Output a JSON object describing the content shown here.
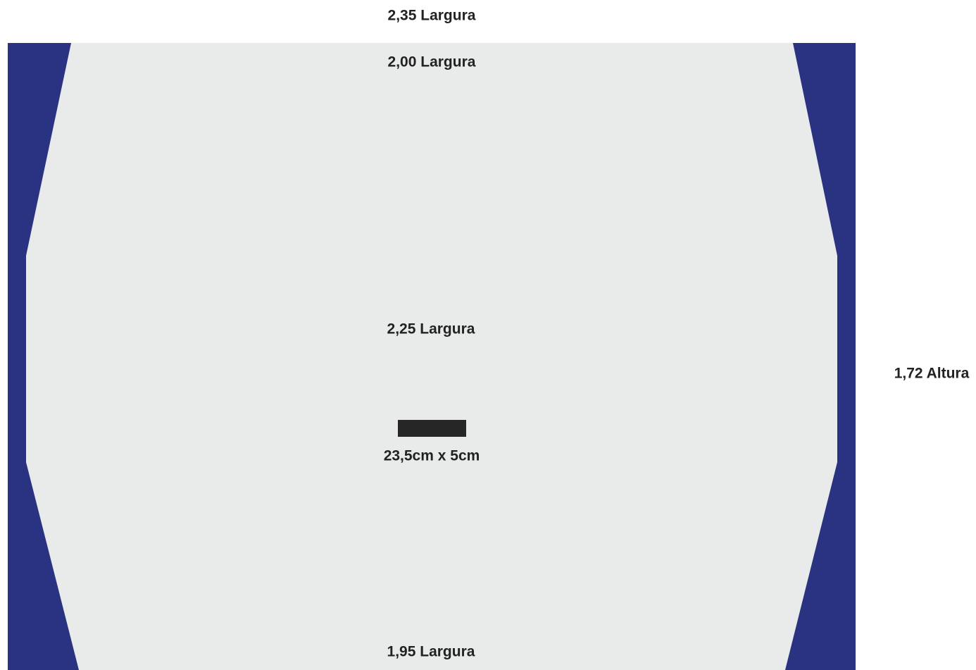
{
  "labels": {
    "top_width": "2,35 Largura",
    "upper_width": "2,00 Largura",
    "middle_width": "2,25 Largura",
    "bottom_width": "1,95 Largura",
    "height": "1,72 Altura",
    "slot": "23,5cm x 5cm"
  }
}
